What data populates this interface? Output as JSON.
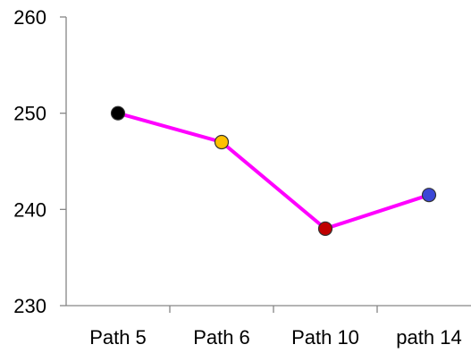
{
  "chart_data": {
    "type": "line",
    "categories": [
      "Path 5",
      "Path 6",
      "Path 10",
      "path 14"
    ],
    "series": [
      {
        "values": [
          250,
          247,
          238,
          241.5
        ],
        "line_color": "#ff00ff",
        "marker_colors": [
          "#000000",
          "#ffc000",
          "#c00000",
          "#3b47d6"
        ]
      }
    ],
    "ylim": [
      230,
      260
    ],
    "yticks": [
      230,
      240,
      250,
      260
    ],
    "title": "",
    "xlabel": "",
    "ylabel": "",
    "grid": false,
    "legend": "none"
  }
}
